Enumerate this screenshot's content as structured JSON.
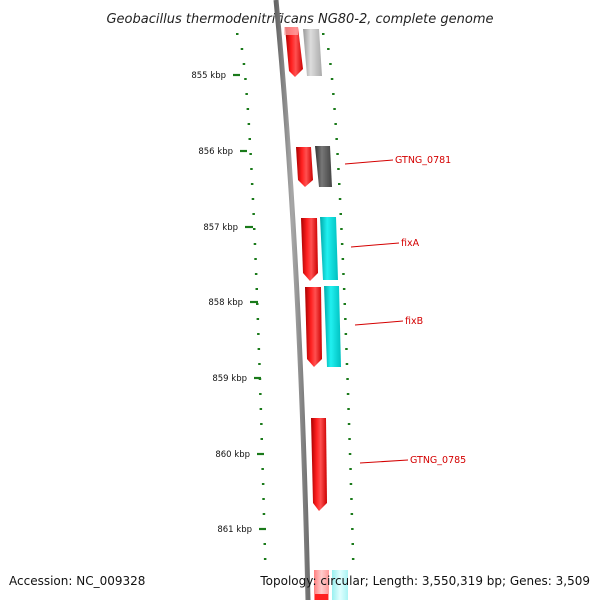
{
  "title": "Geobacillus thermodenitrificans NG80-2, complete genome",
  "footer": {
    "accession": "Accession: NC_009328",
    "stats": "Topology: circular; Length: 3,550,319 bp; Genes: 3,509"
  },
  "colors": {
    "forward_gene": "#ff0000",
    "reverse_gene": "#00e8e8",
    "grey_gene": "#bbbbbb",
    "dark_gene": "#555555",
    "ruler": "#1a7a1a",
    "backbone": "#808080",
    "label": "#d40000"
  },
  "ruler": {
    "ticks": [
      "855 kbp",
      "856 kbp",
      "857 kbp",
      "858 kbp",
      "859 kbp",
      "860 kbp",
      "861 kbp"
    ]
  },
  "genes": [
    {
      "label": "",
      "color": "#ff0000",
      "track": "inner"
    },
    {
      "label": "",
      "color": "#bbbbbb",
      "track": "outer"
    },
    {
      "label": "",
      "color": "#ff0000",
      "track": "inner"
    },
    {
      "label": "GTNG_0781",
      "color": "#555555",
      "track": "outer"
    },
    {
      "label": "",
      "color": "#ff0000",
      "track": "inner"
    },
    {
      "label": "fixA",
      "color": "#00e8e8",
      "track": "outer"
    },
    {
      "label": "",
      "color": "#ff0000",
      "track": "inner"
    },
    {
      "label": "fixB",
      "color": "#00e8e8",
      "track": "outer"
    },
    {
      "label": "GTNG_0785",
      "color": "#ff0000",
      "track": "inner"
    }
  ]
}
